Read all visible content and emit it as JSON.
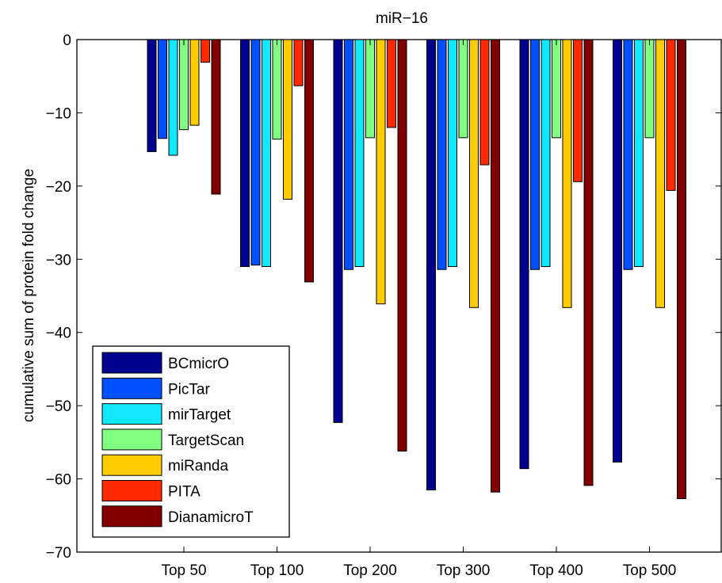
{
  "chart_data": {
    "type": "bar",
    "title": "miR−16",
    "xlabel": "",
    "ylabel": "cumulative sum of protein fold change",
    "ylim": [
      -70,
      0
    ],
    "yticks": [
      0,
      -10,
      -20,
      -30,
      -40,
      -50,
      -60,
      -70
    ],
    "ytick_labels": [
      "0",
      "−10",
      "−20",
      "−30",
      "−40",
      "−50",
      "−60",
      "−70"
    ],
    "categories": [
      "Top 50",
      "Top 100",
      "Top 200",
      "Top 300",
      "Top 400",
      "Top 500"
    ],
    "series": [
      {
        "name": "BCmicrO",
        "color": "#00008f",
        "values": [
          -15.3,
          -31.0,
          -52.3,
          -61.5,
          -58.6,
          -57.7
        ]
      },
      {
        "name": "PicTar",
        "color": "#0050ff",
        "values": [
          -13.5,
          -30.8,
          -31.4,
          -31.4,
          -31.4,
          -31.4
        ]
      },
      {
        "name": "mirTarget",
        "color": "#10e8ff",
        "values": [
          -15.8,
          -31.0,
          -31.0,
          -31.0,
          -31.0,
          -31.0
        ]
      },
      {
        "name": "TargetScan",
        "color": "#80ff80",
        "values": [
          -12.3,
          -13.6,
          -13.4,
          -13.4,
          -13.4,
          -13.4
        ]
      },
      {
        "name": "miRanda",
        "color": "#ffcc00",
        "values": [
          -11.7,
          -21.8,
          -36.1,
          -36.6,
          -36.6,
          -36.6
        ]
      },
      {
        "name": "PITA",
        "color": "#ff2a00",
        "values": [
          -3.1,
          -6.3,
          -12.0,
          -17.1,
          -19.4,
          -20.6
        ]
      },
      {
        "name": "DianamicroT",
        "color": "#800000",
        "values": [
          -21.1,
          -33.1,
          -56.2,
          -61.8,
          -60.9,
          -62.7
        ]
      }
    ],
    "legend_position": "bottom-left",
    "grid": false
  }
}
